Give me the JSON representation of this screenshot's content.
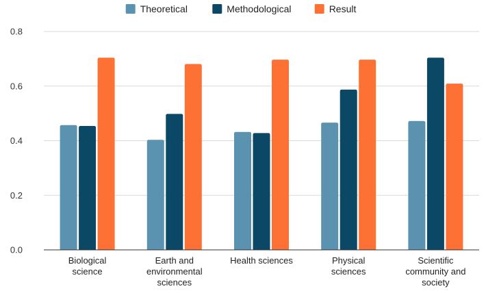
{
  "chart_data": {
    "type": "bar",
    "categories": [
      [
        "Biological",
        "science"
      ],
      [
        "Earth and",
        "environmental",
        "sciences"
      ],
      [
        "Health sciences"
      ],
      [
        "Physical",
        "sciences"
      ],
      [
        "Scientific",
        "community and",
        "society"
      ]
    ],
    "series": [
      {
        "name": "Theoretical",
        "color": "#5b92b0",
        "values": [
          0.457,
          0.403,
          0.432,
          0.466,
          0.472
        ]
      },
      {
        "name": "Methodological",
        "color": "#0b4866",
        "values": [
          0.454,
          0.498,
          0.428,
          0.587,
          0.704
        ]
      },
      {
        "name": "Result",
        "color": "#fd7234",
        "values": [
          0.704,
          0.681,
          0.697,
          0.697,
          0.609
        ]
      }
    ],
    "ylim": [
      0,
      0.8
    ],
    "yticks": [
      "0.0",
      "0.2",
      "0.4",
      "0.6",
      "0.8"
    ],
    "ytick_values": [
      0,
      0.2,
      0.4,
      0.6,
      0.8
    ],
    "grid": true,
    "legend": "top-center",
    "title": "",
    "xlabel": "",
    "ylabel": ""
  }
}
